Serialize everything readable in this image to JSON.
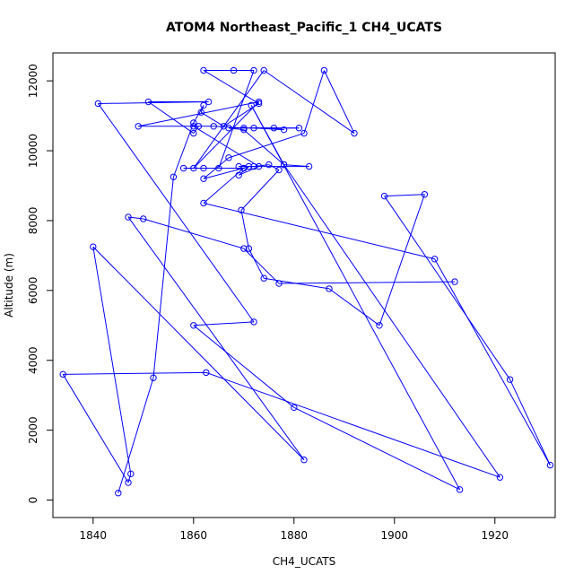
{
  "chart_data": {
    "type": "line",
    "title": "ATOM4 Northeast_Pacific_1 CH4_UCATS",
    "xlabel": "CH4_UCATS",
    "ylabel": "Altitude (m)",
    "xlim": [
      1832,
      1932
    ],
    "ylim": [
      -500,
      12800
    ],
    "x_ticks": [
      1840,
      1860,
      1880,
      1900,
      1920
    ],
    "y_ticks": [
      0,
      2000,
      4000,
      6000,
      8000,
      10000,
      12000
    ],
    "grid": false,
    "legend": "none",
    "series_color": "#0000ff",
    "markers": "open-circle",
    "x": [
      1845.0,
      1852.0,
      1856.0,
      1860.0,
      1862.0,
      1861.5,
      1866.0,
      1873.0,
      1862.0,
      1868.0,
      1872.0,
      1865.0,
      1858.0,
      1862.0,
      1870.0,
      1871.0,
      1869.0,
      1873.0,
      1860.0,
      1864.0,
      1870.0,
      1876.0,
      1878.0,
      1872.0,
      1881.0,
      1867.0,
      1870.0,
      1878.0,
      1883.0,
      1869.0,
      1872.0,
      1875.0,
      1877.0,
      1869.5,
      1871.0,
      1874.0,
      1887.0,
      1897.0,
      1906.0,
      1898.0,
      1923.0,
      1931.0,
      1908.0,
      1862.0,
      1870.0,
      1862.0,
      1867.0,
      1882.0,
      1886.0,
      1892.0,
      1874.0,
      1860.0,
      1873.0,
      1849.0,
      1861.0,
      1860.0,
      1851.0,
      1863.0,
      1841.0,
      1872.0,
      1860.0,
      1880.0,
      1913.0,
      1871.5,
      1878.0,
      1921.0,
      1862.5,
      1834.0,
      1847.0,
      1847.5,
      1840.0,
      1882.0,
      1847.0,
      1850.0,
      1870.0,
      1877.0,
      1912.0
    ],
    "y": [
      200,
      3500,
      9250,
      10800,
      11300,
      11100,
      10700,
      11350,
      12300,
      12300,
      12300,
      9500,
      9500,
      9500,
      9500,
      9550,
      9300,
      9550,
      10700,
      10700,
      10650,
      10650,
      10600,
      10650,
      10650,
      10650,
      10600,
      9600,
      9550,
      9550,
      9550,
      9600,
      9450,
      8300,
      7200,
      6350,
      6050,
      5000,
      8750,
      8700,
      3450,
      1000,
      6900,
      8500,
      9500,
      9200,
      9800,
      10500,
      12300,
      10500,
      12300,
      9500,
      11400,
      10700,
      10700,
      10500,
      11400,
      11400,
      11350,
      5100,
      5000,
      2650,
      300,
      11300,
      9600,
      650,
      3650,
      3600,
      500,
      750,
      7250,
      1150,
      8100,
      8050,
      7200,
      6200,
      6250
    ],
    "x_scaled_note": ""
  }
}
